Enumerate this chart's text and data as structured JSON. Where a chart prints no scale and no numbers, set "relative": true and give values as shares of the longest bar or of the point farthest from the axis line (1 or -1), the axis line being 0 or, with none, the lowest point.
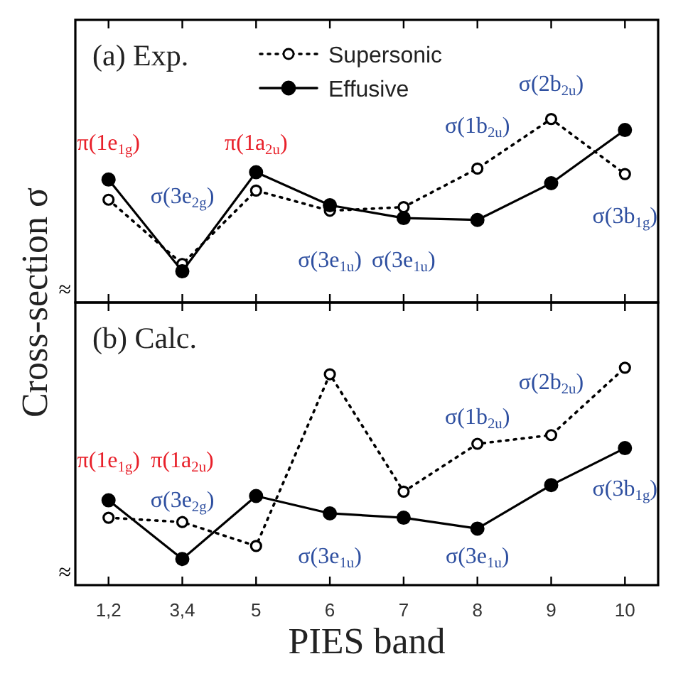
{
  "chart_data": [
    {
      "type": "line",
      "title": "(a) Exp.",
      "ylabel": "Cross-section σ",
      "relative": true,
      "legend": "top",
      "tick_labels": false,
      "marker": "circle",
      "categories": [
        "1,2",
        "3,4",
        "5",
        "6",
        "7",
        "8",
        "9",
        "10"
      ],
      "series": [
        {
          "name": "Supersonic",
          "color": "#000000",
          "line_style": "dotted",
          "values": [
            0.56,
            0.21,
            0.61,
            0.5,
            0.52,
            0.73,
            1,
            0.7
          ]
        },
        {
          "name": "Effusive",
          "color": "#000000",
          "line_style": "solid",
          "values": [
            0.67,
            0.17,
            0.71,
            0.53,
            0.46,
            0.45,
            0.65,
            0.94
          ]
        }
      ],
      "annotations": [
        "π(1e$_{1g}$)",
        "π(1a$_{2u}$)",
        "σ(3e$_{2g}$)",
        "σ(3e$_{1u}$)",
        "σ(3e$_{1u}$)",
        "σ(1b$_{2u}$)",
        "σ(2b$_{2u}$)",
        "σ(3b$_{1g}$)",
        "≈"
      ]
    },
    {
      "type": "line",
      "title": "(b) Calc.",
      "xlabel": "PIES band",
      "relative": true,
      "tick_labels": "x",
      "marker": "circle",
      "categories": [
        "1,2",
        "3,4",
        "5",
        "6",
        "7",
        "8",
        "9",
        "10"
      ],
      "series": [
        {
          "color": "#000000",
          "line_style": "dotted",
          "values": [
            0.31,
            0.29,
            0.18,
            0.97,
            0.43,
            0.65,
            0.69,
            1
          ]
        },
        {
          "color": "#000000",
          "line_style": "solid",
          "values": [
            0.39,
            0.12,
            0.41,
            0.33,
            0.31,
            0.26,
            0.46,
            0.63
          ]
        }
      ],
      "annotations": [
        "π(1e$_{1g}$)",
        "π(1a$_{2u}$)",
        "σ(3e$_{2g}$)",
        "σ(3e$_{1u}$)",
        "σ(3e$_{1u}$)",
        "σ(1b$_{2u}$)",
        "σ(2b$_{2u}$)",
        "σ(3b$_{1g}$)",
        "≈"
      ]
    }
  ]
}
